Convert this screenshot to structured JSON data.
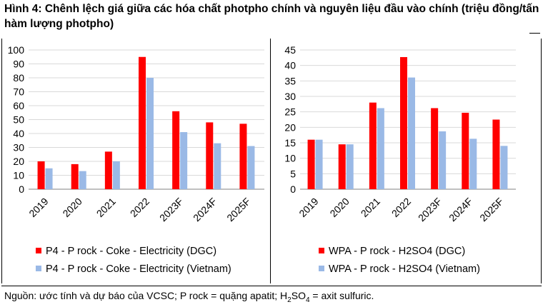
{
  "title": "Hình 4: Chênh lệch giá giữa các hóa chất photpho chính và nguyên liệu đầu vào chính (triệu đồng/tấn hàm lượng photpho)",
  "colors": {
    "dgc": "#ff0000",
    "vietnam": "#9ab9e6",
    "grid": "#d9d9d9",
    "axis": "#808080"
  },
  "chart_data": [
    {
      "type": "bar",
      "categories": [
        "2019",
        "2020",
        "2021",
        "2022",
        "2023F",
        "2024F",
        "2025F"
      ],
      "ylim": [
        0,
        100
      ],
      "yticks": [
        0,
        10,
        20,
        30,
        40,
        50,
        60,
        70,
        80,
        90,
        100
      ],
      "grid": true,
      "legend_position": "bottom",
      "series": [
        {
          "name": "P4 - P rock - Coke - Electricity (DGC)",
          "color": "#ff0000",
          "values": [
            20,
            18,
            27,
            95,
            56,
            48,
            47
          ]
        },
        {
          "name": "P4 - P rock - Coke - Electricity (Vietnam)",
          "color": "#9ab9e6",
          "values": [
            15,
            13,
            20,
            80,
            41,
            33,
            31
          ]
        }
      ]
    },
    {
      "type": "bar",
      "categories": [
        "2019",
        "2020",
        "2021",
        "2022",
        "2023F",
        "2024F",
        "2025F"
      ],
      "ylim": [
        0,
        45
      ],
      "yticks": [
        0,
        5,
        10,
        15,
        20,
        25,
        30,
        35,
        40,
        45
      ],
      "grid": true,
      "legend_position": "bottom",
      "series": [
        {
          "name": "WPA - P rock - H2SO4 (DGC)",
          "color": "#ff0000",
          "values": [
            16,
            14.5,
            28,
            42.7,
            26.2,
            24.7,
            22.5
          ]
        },
        {
          "name": "WPA - P rock - H2SO4 (Vietnam)",
          "color": "#9ab9e6",
          "values": [
            16,
            14.5,
            26.2,
            36.1,
            18.7,
            16.3,
            14
          ]
        }
      ]
    }
  ],
  "source": {
    "prefix": "Nguồn: ước tính và dự báo của VCSC; P rock = quặng apatit; H",
    "sub1": "2",
    "mid": "SO",
    "sub2": "4",
    "suffix": " = axit sulfuric."
  }
}
